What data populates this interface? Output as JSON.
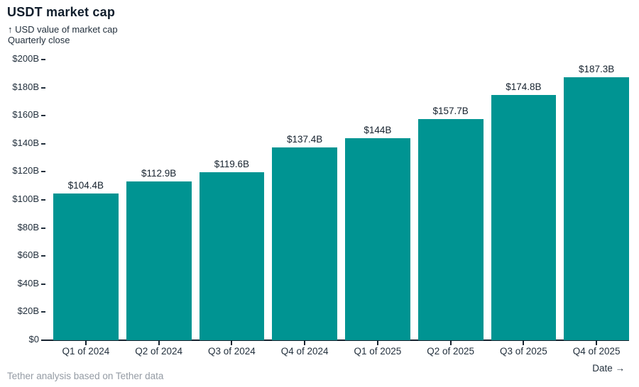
{
  "header": {
    "title": "USDT market cap",
    "subtitle_line1": "↑ USD value of market cap",
    "subtitle_line2": "Quarterly close"
  },
  "chart_data": {
    "type": "bar",
    "title": "USDT market cap",
    "ylabel": "USD value of market cap",
    "y_subtitle": "Quarterly close",
    "xlabel": "Date",
    "categories": [
      "Q1 of 2024",
      "Q2 of 2024",
      "Q3 of 2024",
      "Q4 of 2024",
      "Q1 of 2025",
      "Q2 of 2025",
      "Q3 of 2025",
      "Q4 of 2025"
    ],
    "values": [
      104.4,
      112.9,
      119.6,
      137.4,
      144,
      157.7,
      174.8,
      187.3
    ],
    "bar_labels": [
      "$104.4B",
      "$112.9B",
      "$119.6B",
      "$137.4B",
      "$144B",
      "$157.7B",
      "$174.8B",
      "$187.3B"
    ],
    "y_ticks": [
      "$200B",
      "$180B",
      "$160B",
      "$140B",
      "$120B",
      "$100B",
      "$80B",
      "$60B",
      "$40B",
      "$20B",
      "$0"
    ],
    "y_tick_values": [
      200,
      180,
      160,
      140,
      120,
      100,
      80,
      60,
      40,
      20,
      0
    ],
    "ylim": [
      0,
      200
    ],
    "grid": false,
    "legend": "none",
    "bar_color": "#009492"
  },
  "footer": {
    "source": "Tether analysis based on Tether data",
    "x_axis_label": "Date →"
  },
  "colors": {
    "text_dark": "#16222e",
    "text_muted": "#949ba4",
    "bar": "#009492"
  }
}
